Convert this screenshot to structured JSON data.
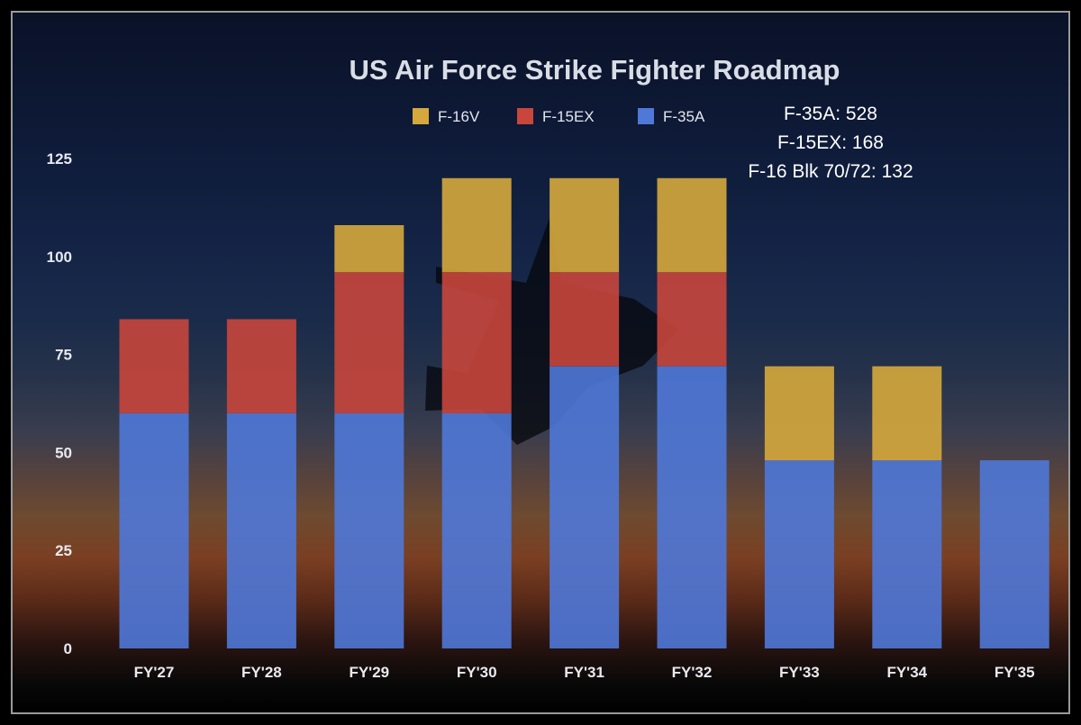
{
  "chart_data": {
    "type": "bar",
    "stacked": true,
    "title": "US Air Force Strike Fighter Roadmap",
    "xlabel": "",
    "ylabel": "",
    "categories": [
      "FY'27",
      "FY'28",
      "FY'29",
      "FY'30",
      "FY'31",
      "FY'32",
      "FY'33",
      "FY'34",
      "FY'35"
    ],
    "series": [
      {
        "name": "F-35A",
        "color": "#4f78d8",
        "values": [
          60,
          60,
          60,
          60,
          72,
          72,
          48,
          48,
          48
        ]
      },
      {
        "name": "F-15EX",
        "color": "#c8463c",
        "values": [
          24,
          24,
          36,
          36,
          24,
          24,
          0,
          0,
          0
        ]
      },
      {
        "name": "F-16V",
        "color": "#d6a83c",
        "values": [
          0,
          0,
          12,
          24,
          24,
          24,
          24,
          24,
          0
        ]
      }
    ],
    "legend_order": [
      "F-16V",
      "F-15EX",
      "F-35A"
    ],
    "legend_position": "top",
    "ylim": [
      0,
      125
    ],
    "yticks": [
      0,
      25,
      50,
      75,
      100,
      125
    ],
    "grid": false,
    "annotations": [
      "F-35A: 528",
      "F-15EX: 168",
      "F-16 Blk 70/72: 132"
    ]
  }
}
